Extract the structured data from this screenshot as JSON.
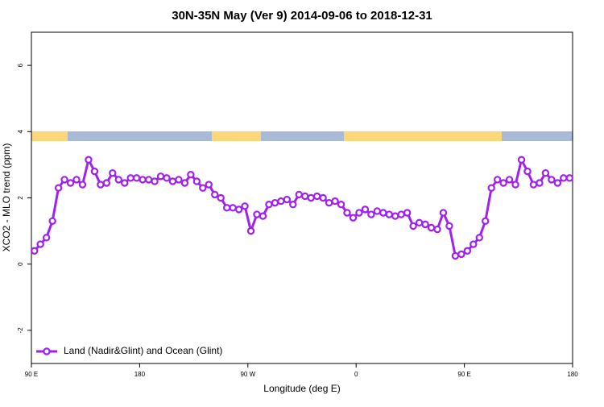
{
  "chart_data": {
    "type": "line",
    "title": "30N-35N May (Ver 9)   2014-09-06 to 2018-12-31",
    "x_label": "Longitude (deg E)",
    "y_label": "XCO2 - MLO trend (ppm)",
    "xlim": [
      90,
      540
    ],
    "xticks": [
      {
        "value": 90,
        "label": "90 E"
      },
      180,
      {
        "value": 270,
        "label": "90 W"
      },
      {
        "value": 360,
        "label": "0"
      },
      {
        "value": 450,
        "label": "90 E"
      },
      {
        "value": 540,
        "label": "180"
      }
    ],
    "ylim": [
      -3,
      7
    ],
    "yticks": [
      -2,
      0,
      2,
      4,
      6
    ],
    "legend": "bottomleft",
    "x": [
      92.5,
      97.5,
      102.5,
      107.5,
      112.5,
      117.5,
      122.5,
      127.5,
      132.5,
      137.5,
      142.5,
      147.5,
      152.5,
      157.5,
      162.5,
      167.5,
      172.5,
      177.5,
      182.5,
      187.5,
      192.5,
      197.5,
      202.5,
      207.5,
      212.5,
      217.5,
      222.5,
      227.5,
      232.5,
      237.5,
      242.5,
      247.5,
      252.5,
      257.5,
      262.5,
      267.5,
      272.5,
      277.5,
      282.5,
      287.5,
      292.5,
      297.5,
      302.5,
      307.5,
      312.5,
      317.5,
      322.5,
      327.5,
      332.5,
      337.5,
      342.5,
      347.5,
      352.5,
      357.5,
      362.5,
      367.5,
      372.5,
      377.5,
      382.5,
      387.5,
      392.5,
      397.5,
      402.5,
      407.5,
      412.5,
      417.5,
      422.5,
      427.5,
      432.5,
      437.5,
      442.5,
      447.5,
      452.5,
      457.5,
      462.5,
      467.5,
      472.5,
      477.5,
      482.5,
      487.5,
      492.5,
      497.5,
      502.5,
      507.5,
      512.5,
      517.5,
      522.5,
      527.5,
      532.5,
      537.5
    ],
    "series": [
      {
        "name": "Land (Nadir&Glint) and Ocean (Glint)",
        "color": "#a020f0",
        "values": [
          0.4,
          0.6,
          0.8,
          1.3,
          2.3,
          2.55,
          2.45,
          2.55,
          2.4,
          3.15,
          2.8,
          2.4,
          2.45,
          2.75,
          2.55,
          2.45,
          2.6,
          2.6,
          2.55,
          2.55,
          2.5,
          2.65,
          2.6,
          2.5,
          2.55,
          2.45,
          2.7,
          2.5,
          2.3,
          2.4,
          2.1,
          2.0,
          1.7,
          1.7,
          1.65,
          1.75,
          1.0,
          1.5,
          1.45,
          1.8,
          1.85,
          1.9,
          1.95,
          1.8,
          2.1,
          2.05,
          2.0,
          2.05,
          2.0,
          1.85,
          1.9,
          1.8,
          1.55,
          1.4,
          1.55,
          1.65,
          1.5,
          1.6,
          1.55,
          1.5,
          1.45,
          1.5,
          1.55,
          1.15,
          1.25,
          1.2,
          1.1,
          1.05,
          1.55,
          1.15,
          0.25,
          0.3,
          0.4,
          0.6,
          0.8,
          1.3,
          2.3,
          2.55,
          2.45,
          2.55,
          2.4,
          3.15,
          2.8,
          2.4,
          2.45,
          2.75,
          2.55,
          2.45,
          2.6,
          2.6
        ]
      }
    ]
  }
}
